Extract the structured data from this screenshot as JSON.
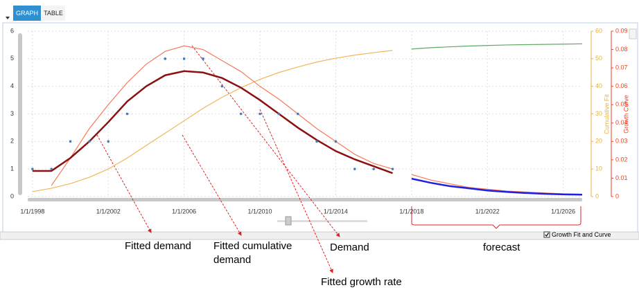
{
  "ui": {
    "tabs": [
      "GRAPH",
      "TABLE"
    ],
    "checkbox_label": "Growth Fit and Curve"
  },
  "chart_data": {
    "type": "combo",
    "x_is_numeric": true,
    "xlim": [
      1997.75,
      2027
    ],
    "xticks": [
      {
        "value": 1998,
        "label": "1/1/1998"
      },
      {
        "value": 2002,
        "label": "1/1/2002"
      },
      {
        "value": 2006,
        "label": "1/1/2006"
      },
      {
        "value": 2010,
        "label": "1/1/2010"
      },
      {
        "value": 2014,
        "label": "1/1/2014"
      },
      {
        "value": 2018,
        "label": "1/1/2018"
      },
      {
        "value": 2022,
        "label": "1/1/2022"
      },
      {
        "value": 2026,
        "label": "1/1/2026"
      }
    ],
    "ylim": [
      0,
      6
    ],
    "yticks": [
      0,
      1,
      2,
      3,
      4,
      5,
      6
    ],
    "y2lim": [
      0,
      60
    ],
    "y2ticks": [
      0,
      10,
      20,
      30,
      40,
      50,
      60
    ],
    "y2_label": "Cumulative Fit",
    "y2_color": "#e8b040",
    "y3lim": [
      0,
      0.09
    ],
    "y3ticks": [
      0,
      0.01,
      0.02,
      0.03,
      0.04,
      0.05,
      0.06,
      0.07,
      0.08,
      0.09
    ],
    "y3_label": "Growth Curve",
    "y3_color": "#f04020",
    "grid": true,
    "annotations": [
      "forecast"
    ],
    "series": [
      {
        "name": "Demand",
        "type": "scatter",
        "axis": "y",
        "color": "#3b7dc4",
        "x": [
          1998,
          1999,
          2000,
          2001,
          2002,
          2003,
          2005,
          2006,
          2007,
          2008,
          2009,
          2010,
          2011,
          2012,
          2013,
          2014,
          2015,
          2016,
          2017
        ],
        "values": [
          1,
          1,
          2,
          2,
          2,
          3,
          5,
          5,
          5,
          4,
          3,
          3,
          3,
          3,
          2,
          2,
          1,
          1,
          1
        ]
      },
      {
        "name": "Fitted demand",
        "type": "line",
        "axis": "y",
        "color": "#8b1010",
        "width": 2.5,
        "x": [
          1998,
          1999,
          2000,
          2001,
          2002,
          2003,
          2004,
          2005,
          2006,
          2007,
          2008,
          2009,
          2010,
          2011,
          2012,
          2013,
          2014,
          2015,
          2016,
          2017
        ],
        "values": [
          0.93,
          0.93,
          1.4,
          2.0,
          2.7,
          3.45,
          4.0,
          4.4,
          4.55,
          4.5,
          4.3,
          3.95,
          3.5,
          3.0,
          2.5,
          2.05,
          1.65,
          1.35,
          1.1,
          0.85
        ]
      },
      {
        "name": "Fitted cumulative demand",
        "type": "line",
        "axis": "y2",
        "color": "#f2b55a",
        "width": 1.2,
        "x": [
          1998,
          1999,
          2000,
          2001,
          2002,
          2003,
          2004,
          2005,
          2006,
          2007,
          2008,
          2009,
          2010,
          2011,
          2012,
          2013,
          2014,
          2015,
          2016,
          2017
        ],
        "values": [
          1.8,
          3,
          4.7,
          7,
          10,
          14,
          18.5,
          23,
          27.5,
          32,
          36,
          39.5,
          42.5,
          45,
          47,
          48.8,
          50.2,
          51.3,
          52.2,
          53
        ]
      },
      {
        "name": "Fitted growth rate",
        "type": "line",
        "axis": "y3",
        "color": "#f47a5a",
        "width": 1.2,
        "x": [
          1999,
          2000,
          2001,
          2002,
          2003,
          2004,
          2005,
          2006,
          2007,
          2008,
          2009,
          2010,
          2011,
          2012,
          2013,
          2014,
          2015,
          2016,
          2017
        ],
        "values": [
          0.006,
          0.021,
          0.037,
          0.05,
          0.062,
          0.072,
          0.079,
          0.082,
          0.08,
          0.074,
          0.068,
          0.06,
          0.053,
          0.045,
          0.037,
          0.03,
          0.023,
          0.018,
          0.015
        ]
      },
      {
        "type": "line",
        "axis": "y",
        "color": "#2020e0",
        "width": 2.5,
        "x": [
          2018,
          2019,
          2020,
          2021,
          2022,
          2023,
          2024,
          2025,
          2026,
          2027
        ],
        "values": [
          0.65,
          0.5,
          0.38,
          0.3,
          0.22,
          0.17,
          0.13,
          0.1,
          0.08,
          0.07
        ]
      },
      {
        "type": "line",
        "axis": "y2",
        "color": "#5fa85f",
        "width": 1.2,
        "x": [
          2018,
          2019,
          2020,
          2021,
          2022,
          2023,
          2024,
          2025,
          2026,
          2027
        ],
        "values": [
          53.5,
          54,
          54.3,
          54.6,
          54.8,
          55,
          55.1,
          55.2,
          55.3,
          55.4
        ]
      },
      {
        "type": "line",
        "axis": "y3",
        "color": "#f47a5a",
        "width": 1.2,
        "x": [
          2018,
          2019,
          2020,
          2021,
          2022,
          2023,
          2024,
          2025,
          2026,
          2027
        ],
        "values": [
          0.012,
          0.009,
          0.007,
          0.005,
          0.004,
          0.003,
          0.0025,
          0.002,
          0.0015,
          0.0013
        ]
      }
    ]
  }
}
